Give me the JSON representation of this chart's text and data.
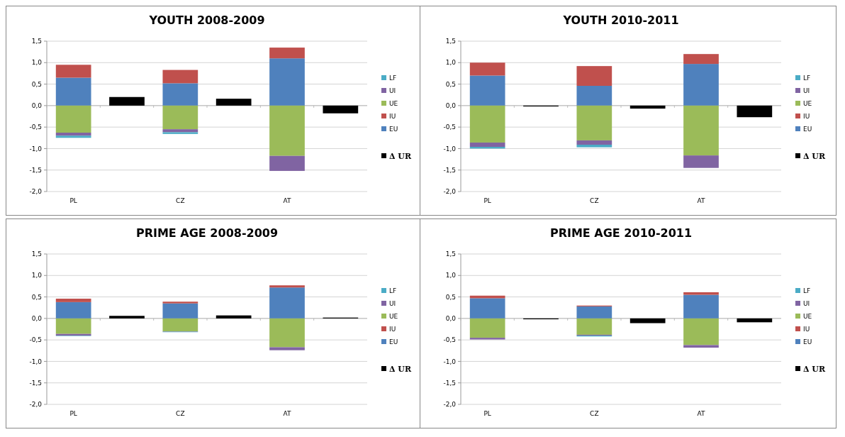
{
  "chart_data": [
    {
      "type": "bar",
      "title": "YOUTH 2008-2009",
      "categories": [
        "PL",
        null,
        "CZ",
        null,
        "AT",
        null
      ],
      "stacked": true,
      "grid": "y",
      "legend": "right",
      "ylim": [
        -2,
        1.5
      ],
      "yticks": [
        {
          "value": -2,
          "label": "-2,0"
        },
        {
          "value": -1.5,
          "label": "-1,5"
        },
        {
          "value": -1,
          "label": "-1,0"
        },
        {
          "value": -0.5,
          "label": "-0,5"
        },
        {
          "value": 0,
          "label": "0,0"
        },
        {
          "value": 0.5,
          "label": "0,5"
        },
        {
          "value": 1,
          "label": "1,0"
        },
        {
          "value": 1.5,
          "label": "1,5"
        }
      ],
      "series": [
        {
          "name": "Δ UR",
          "color": "#000000",
          "values": [
            null,
            0.2,
            null,
            0.16,
            null,
            -0.18
          ]
        },
        {
          "name": "EU",
          "color": "#4f81bd",
          "values": [
            0.65,
            null,
            0.52,
            null,
            1.1,
            null
          ]
        },
        {
          "name": "IU",
          "color": "#c0504d",
          "values": [
            0.3,
            null,
            0.31,
            null,
            0.25,
            null
          ]
        },
        {
          "name": "UE",
          "color": "#9bbb59",
          "values": [
            -0.63,
            null,
            -0.55,
            null,
            -1.17,
            null
          ]
        },
        {
          "name": "UI",
          "color": "#8064a2",
          "values": [
            -0.07,
            null,
            -0.07,
            null,
            -0.35,
            null
          ]
        },
        {
          "name": "LF",
          "color": "#4bacc6",
          "values": [
            -0.05,
            null,
            -0.04,
            null,
            0,
            null
          ]
        }
      ]
    },
    {
      "type": "bar",
      "title": "YOUTH 2010-2011",
      "categories": [
        "PL",
        null,
        "CZ",
        null,
        "AT",
        null
      ],
      "stacked": true,
      "grid": "y",
      "legend": "right",
      "ylim": [
        -2,
        1.5
      ],
      "yticks": [
        {
          "value": -2,
          "label": "-2,0"
        },
        {
          "value": -1.5,
          "label": "-1,5"
        },
        {
          "value": -1,
          "label": "-1,0"
        },
        {
          "value": -0.5,
          "label": "-0,5"
        },
        {
          "value": 0,
          "label": "0,0"
        },
        {
          "value": 0.5,
          "label": "0,5"
        },
        {
          "value": 1,
          "label": "1,0"
        },
        {
          "value": 1.5,
          "label": "1,5"
        }
      ],
      "series": [
        {
          "name": "Δ UR",
          "color": "#000000",
          "values": [
            null,
            -0.02,
            null,
            -0.07,
            null,
            -0.27
          ]
        },
        {
          "name": "EU",
          "color": "#4f81bd",
          "values": [
            0.7,
            null,
            0.46,
            null,
            0.97,
            null
          ]
        },
        {
          "name": "IU",
          "color": "#c0504d",
          "values": [
            0.3,
            null,
            0.46,
            null,
            0.23,
            null
          ]
        },
        {
          "name": "UE",
          "color": "#9bbb59",
          "values": [
            -0.86,
            null,
            -0.81,
            null,
            -1.16,
            null
          ]
        },
        {
          "name": "UI",
          "color": "#8064a2",
          "values": [
            -0.1,
            null,
            -0.1,
            null,
            -0.29,
            null
          ]
        },
        {
          "name": "LF",
          "color": "#4bacc6",
          "values": [
            -0.04,
            null,
            -0.06,
            null,
            0,
            null
          ]
        }
      ]
    },
    {
      "type": "bar",
      "title": "PRIME AGE 2008-2009",
      "categories": [
        "PL",
        null,
        "CZ",
        null,
        "AT",
        null
      ],
      "stacked": true,
      "grid": "y",
      "legend": "right",
      "ylim": [
        -2,
        1.5
      ],
      "yticks": [
        {
          "value": -2,
          "label": "-2,0"
        },
        {
          "value": -1.5,
          "label": "-1,5"
        },
        {
          "value": -1,
          "label": "-1,0"
        },
        {
          "value": -0.5,
          "label": "-0,5"
        },
        {
          "value": 0,
          "label": "0,0"
        },
        {
          "value": 0.5,
          "label": "0,5"
        },
        {
          "value": 1,
          "label": "1,0"
        },
        {
          "value": 1.5,
          "label": "1,5"
        }
      ],
      "series": [
        {
          "name": "Δ UR",
          "color": "#000000",
          "values": [
            null,
            0.06,
            null,
            0.07,
            null,
            0.02
          ]
        },
        {
          "name": "EU",
          "color": "#4f81bd",
          "values": [
            0.38,
            null,
            0.35,
            null,
            0.72,
            null
          ]
        },
        {
          "name": "IU",
          "color": "#c0504d",
          "values": [
            0.08,
            null,
            0.04,
            null,
            0.05,
            null
          ]
        },
        {
          "name": "UE",
          "color": "#9bbb59",
          "values": [
            -0.36,
            null,
            -0.3,
            null,
            -0.67,
            null
          ]
        },
        {
          "name": "UI",
          "color": "#8064a2",
          "values": [
            -0.04,
            null,
            -0.01,
            null,
            -0.07,
            null
          ]
        },
        {
          "name": "LF",
          "color": "#4bacc6",
          "values": [
            -0.01,
            null,
            -0.01,
            null,
            0,
            null
          ]
        }
      ]
    },
    {
      "type": "bar",
      "title": "PRIME AGE 2010-2011",
      "categories": [
        "PL",
        null,
        "CZ",
        null,
        "AT",
        null
      ],
      "stacked": true,
      "grid": "y",
      "legend": "right",
      "ylim": [
        -2,
        1.5
      ],
      "yticks": [
        {
          "value": -2,
          "label": "-2,0"
        },
        {
          "value": -1.5,
          "label": "-1,5"
        },
        {
          "value": -1,
          "label": "-1,0"
        },
        {
          "value": -0.5,
          "label": "-0,5"
        },
        {
          "value": 0,
          "label": "0,0"
        },
        {
          "value": 0.5,
          "label": "0,5"
        },
        {
          "value": 1,
          "label": "1,0"
        },
        {
          "value": 1.5,
          "label": "1,5"
        }
      ],
      "series": [
        {
          "name": "Δ UR",
          "color": "#000000",
          "values": [
            null,
            -0.02,
            null,
            -0.11,
            null,
            -0.09
          ]
        },
        {
          "name": "EU",
          "color": "#4f81bd",
          "values": [
            0.47,
            null,
            0.28,
            null,
            0.55,
            null
          ]
        },
        {
          "name": "IU",
          "color": "#c0504d",
          "values": [
            0.06,
            null,
            0.02,
            null,
            0.06,
            null
          ]
        },
        {
          "name": "UE",
          "color": "#9bbb59",
          "values": [
            -0.45,
            null,
            -0.38,
            null,
            -0.62,
            null
          ]
        },
        {
          "name": "UI",
          "color": "#8064a2",
          "values": [
            -0.04,
            null,
            -0.02,
            null,
            -0.06,
            null
          ]
        },
        {
          "name": "LF",
          "color": "#4bacc6",
          "values": [
            0,
            null,
            -0.02,
            null,
            0,
            null
          ]
        }
      ]
    }
  ]
}
